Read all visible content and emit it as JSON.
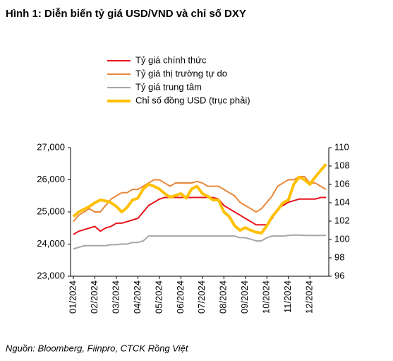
{
  "chart_data": {
    "type": "line",
    "title": "Hình 1: Diễn biến tỷ giá USD/VND và chỉ số DXY",
    "source": "Nguồn: Bloomberg, Fiinpro, CTCK Rồng Việt",
    "categories": [
      "01/2024",
      null,
      null,
      null,
      "02/2024",
      null,
      null,
      null,
      "03/2024",
      null,
      null,
      null,
      "04/2024",
      null,
      null,
      null,
      "05/2024",
      null,
      null,
      null,
      "06/2024",
      null,
      null,
      null,
      "07/2024",
      null,
      null,
      null,
      "08/2024",
      null,
      null,
      null,
      "09/2024",
      null,
      null,
      null,
      "10/2024",
      null,
      null,
      null,
      "11/2024",
      null,
      null,
      null,
      "12/2024",
      null,
      null,
      null
    ],
    "series": [
      {
        "name": "Tỷ giá chính thức",
        "color": "#e8141b",
        "values": [
          24300,
          24400,
          24450,
          24500,
          24550,
          24400,
          24500,
          24550,
          24650,
          24650,
          24700,
          24750,
          24800,
          25000,
          25200,
          25300,
          25400,
          25450,
          25450,
          25450,
          25450,
          25450,
          25450,
          25450,
          25450,
          25450,
          25450,
          25400,
          25200,
          25100,
          25000,
          24900,
          24800,
          24700,
          24600,
          24600,
          24600,
          24800,
          25100,
          25200,
          25300,
          25350,
          25400,
          25400,
          25400,
          25400,
          25450,
          25450
        ]
      },
      {
        "name": "Tỷ giá thị trường tự do",
        "color": "#e8873a",
        "values": [
          24700,
          24900,
          25000,
          25100,
          25000,
          25000,
          25200,
          25400,
          25500,
          25600,
          25600,
          25700,
          25700,
          25800,
          25900,
          26000,
          26000,
          25900,
          25800,
          25900,
          25900,
          25900,
          25900,
          25950,
          25900,
          25800,
          25800,
          25800,
          25700,
          25600,
          25500,
          25300,
          25200,
          25100,
          25000,
          25100,
          25300,
          25500,
          25800,
          25900,
          26000,
          26000,
          26100,
          26100,
          25900,
          25900,
          25800,
          25700
        ]
      },
      {
        "name": "Tỷ giá trung tâm",
        "color": "#a6a6a6",
        "values": [
          23850,
          23900,
          23950,
          23950,
          23950,
          23950,
          23950,
          23980,
          23980,
          24000,
          24000,
          24050,
          24050,
          24100,
          24250,
          24250,
          24250,
          24250,
          24250,
          24250,
          24250,
          24250,
          24250,
          24250,
          24250,
          24250,
          24250,
          24250,
          24250,
          24250,
          24250,
          24200,
          24200,
          24150,
          24100,
          24100,
          24200,
          24250,
          24250,
          24250,
          24270,
          24280,
          24280,
          24270,
          24270,
          24270,
          24270,
          24270
        ]
      },
      {
        "name": "Chỉ số đồng USD (trục phải)",
        "color": "#ffc000",
        "axis": "y2",
        "values": [
          102.5,
          103.0,
          103.3,
          103.6,
          104.0,
          104.3,
          104.2,
          104.0,
          103.6,
          103.0,
          103.5,
          104.3,
          104.5,
          105.5,
          106.0,
          105.8,
          105.5,
          105.0,
          104.6,
          104.8,
          105.0,
          104.5,
          105.5,
          105.8,
          105.0,
          104.7,
          104.3,
          104.3,
          103.0,
          102.5,
          101.5,
          101.0,
          101.3,
          101.0,
          100.8,
          100.7,
          101.5,
          102.5,
          103.2,
          104.0,
          104.3,
          106.0,
          106.8,
          106.5,
          106.0,
          106.8,
          107.5,
          108.2
        ]
      }
    ],
    "ylim": [
      23000,
      27000
    ],
    "yticks": [
      {
        "value": 23000,
        "label": "23,000"
      },
      {
        "value": 24000,
        "label": "24,000"
      },
      {
        "value": 25000,
        "label": "25,000"
      },
      {
        "value": 26000,
        "label": "26,000"
      },
      {
        "value": 27000,
        "label": "27,000"
      }
    ],
    "y2lim": [
      96,
      110
    ],
    "y2ticks": [
      96,
      98,
      100,
      102,
      104,
      106,
      108,
      110
    ],
    "grid": false,
    "legend": "top-left"
  }
}
